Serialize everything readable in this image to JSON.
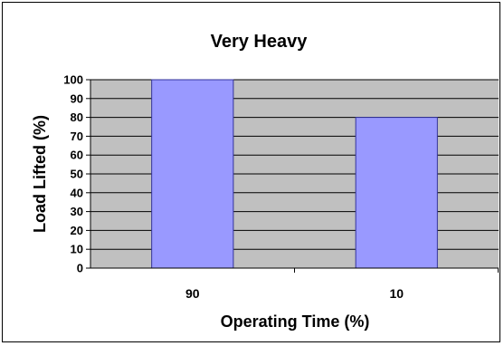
{
  "chart_data": {
    "type": "bar",
    "title": "Very Heavy",
    "xlabel": "Operating Time (%)",
    "ylabel": "Load Lifted (%)",
    "categories": [
      "90",
      "10"
    ],
    "values": [
      100,
      80
    ],
    "ylim": [
      0,
      100
    ],
    "yticks": [
      "0",
      "10",
      "20",
      "30",
      "40",
      "50",
      "60",
      "70",
      "80",
      "90",
      "100"
    ],
    "grid": true,
    "legend": "none",
    "colors": {
      "bar": "#9999ff",
      "bar_border": "#333399",
      "plot_background": "#c0c0c0",
      "gridline": "#000000"
    }
  }
}
